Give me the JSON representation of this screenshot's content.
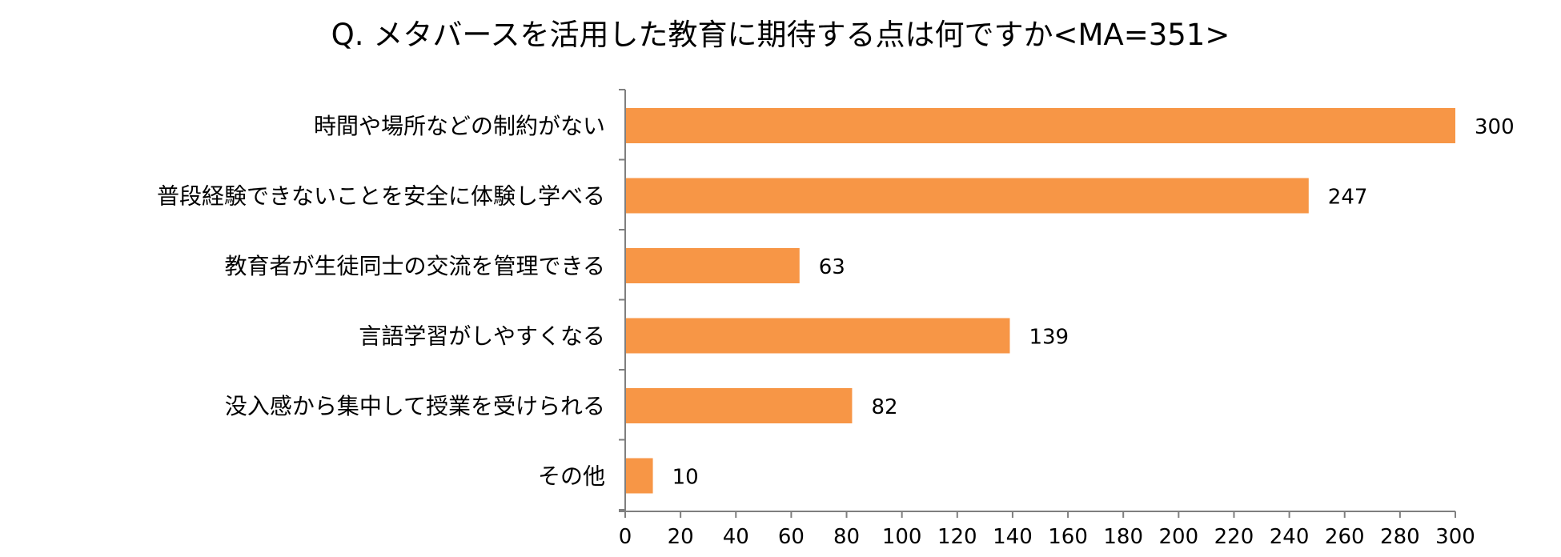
{
  "chart_data": {
    "type": "bar",
    "orientation": "horizontal",
    "title": "Q. メタバースを活用した教育に期待する点は何ですか<MA=351>",
    "categories": [
      "時間や場所などの制約がない",
      "普段経験できないことを安全に体験し学べる",
      "教育者が生徒同士の交流を管理できる",
      "言語学習がしやすくなる",
      "没入感から集中して授業を受けられる",
      "その他"
    ],
    "values": [
      300,
      247,
      63,
      139,
      82,
      10
    ],
    "value_labels": [
      "300",
      "247",
      "63",
      "139",
      "82",
      "10"
    ],
    "xlim": [
      0,
      300
    ],
    "x_ticks": [
      "0",
      "20",
      "40",
      "60",
      "80",
      "100",
      "120",
      "140",
      "160",
      "180",
      "200",
      "220",
      "240",
      "260",
      "280",
      "300"
    ],
    "xlabel": "",
    "ylabel": "",
    "grid": false,
    "legend": "none",
    "bar_color": "#F79646"
  }
}
